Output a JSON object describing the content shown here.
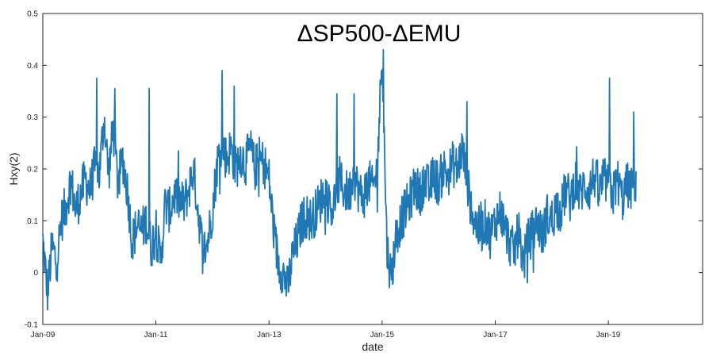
{
  "chart_data": {
    "type": "line",
    "title": "ΔSP500-ΔEMU",
    "xlabel": "date",
    "ylabel": "Hxy(2)",
    "xlim": [
      "2009-01-01",
      "2020-09-01"
    ],
    "ylim": [
      -0.1,
      0.5
    ],
    "grid": false,
    "legend": "none",
    "y_ticks": [
      -0.1,
      0,
      0.1,
      0.2,
      0.3,
      0.4,
      0.5
    ],
    "y_tick_labels": [
      "-0.1",
      "0",
      "0.1",
      "0.2",
      "0.3",
      "0.4",
      "0.5"
    ],
    "x_ticks": [
      "2009-01-01",
      "2011-01-01",
      "2013-01-01",
      "2015-01-01",
      "2017-01-01",
      "2019-01-01"
    ],
    "x_tick_labels": [
      "Jan-09",
      "Jan-11",
      "Jan-13",
      "Jan-15",
      "Jan-17",
      "Jan-19"
    ],
    "line_color": "#1f77b4",
    "series": [
      {
        "values": [
          [
            "2009-01-01",
            0.06
          ],
          [
            "2009-02-01",
            -0.04
          ],
          [
            "2009-03-01",
            0.05
          ],
          [
            "2009-04-01",
            0.02
          ],
          [
            "2009-05-01",
            0.1
          ],
          [
            "2009-06-01",
            0.13
          ],
          [
            "2009-07-01",
            0.18
          ],
          [
            "2009-08-01",
            0.12
          ],
          [
            "2009-09-01",
            0.15
          ],
          [
            "2009-10-01",
            0.18
          ],
          [
            "2009-11-01",
            0.16
          ],
          [
            "2009-12-01",
            0.2
          ],
          [
            "2010-01-01",
            0.19
          ],
          [
            "2010-02-01",
            0.3
          ],
          [
            "2010-03-01",
            0.19
          ],
          [
            "2010-04-01",
            0.28
          ],
          [
            "2010-05-01",
            0.17
          ],
          [
            "2010-06-01",
            0.22
          ],
          [
            "2010-07-01",
            0.16
          ],
          [
            "2010-08-01",
            0.06
          ],
          [
            "2010-09-01",
            0.09
          ],
          [
            "2010-10-01",
            0.08
          ],
          [
            "2010-11-01",
            0.1
          ],
          [
            "2010-12-01",
            0.05
          ],
          [
            "2011-01-01",
            0.08
          ],
          [
            "2011-02-01",
            0.02
          ],
          [
            "2011-03-01",
            0.13
          ],
          [
            "2011-04-01",
            0.12
          ],
          [
            "2011-05-01",
            0.15
          ],
          [
            "2011-06-01",
            0.14
          ],
          [
            "2011-07-01",
            0.13
          ],
          [
            "2011-08-01",
            0.16
          ],
          [
            "2011-09-01",
            0.2
          ],
          [
            "2011-10-01",
            0.12
          ],
          [
            "2011-11-01",
            0.04
          ],
          [
            "2011-12-01",
            0.06
          ],
          [
            "2012-01-01",
            0.12
          ],
          [
            "2012-02-01",
            0.21
          ],
          [
            "2012-03-01",
            0.25
          ],
          [
            "2012-04-01",
            0.22
          ],
          [
            "2012-05-01",
            0.24
          ],
          [
            "2012-06-01",
            0.2
          ],
          [
            "2012-07-01",
            0.23
          ],
          [
            "2012-08-01",
            0.21
          ],
          [
            "2012-09-01",
            0.24
          ],
          [
            "2012-10-01",
            0.2
          ],
          [
            "2012-11-01",
            0.22
          ],
          [
            "2012-12-01",
            0.21
          ],
          [
            "2013-01-01",
            0.18
          ],
          [
            "2013-02-01",
            0.08
          ],
          [
            "2013-03-01",
            0.02
          ],
          [
            "2013-04-01",
            0.0
          ],
          [
            "2013-05-01",
            -0.03
          ],
          [
            "2013-06-01",
            0.03
          ],
          [
            "2013-07-01",
            0.06
          ],
          [
            "2013-08-01",
            0.1
          ],
          [
            "2013-09-01",
            0.11
          ],
          [
            "2013-10-01",
            0.1
          ],
          [
            "2013-11-01",
            0.12
          ],
          [
            "2013-12-01",
            0.14
          ],
          [
            "2014-01-01",
            0.16
          ],
          [
            "2014-02-01",
            0.12
          ],
          [
            "2014-03-01",
            0.14
          ],
          [
            "2014-04-01",
            0.18
          ],
          [
            "2014-05-01",
            0.16
          ],
          [
            "2014-06-01",
            0.15
          ],
          [
            "2014-07-01",
            0.19
          ],
          [
            "2014-08-01",
            0.16
          ],
          [
            "2014-09-01",
            0.14
          ],
          [
            "2014-10-01",
            0.18
          ],
          [
            "2014-11-01",
            0.16
          ],
          [
            "2014-12-01",
            0.2
          ],
          [
            "2015-01-01",
            0.43
          ],
          [
            "2015-02-01",
            0.05
          ],
          [
            "2015-03-01",
            -0.01
          ],
          [
            "2015-04-01",
            0.07
          ],
          [
            "2015-05-01",
            0.1
          ],
          [
            "2015-06-01",
            0.12
          ],
          [
            "2015-07-01",
            0.14
          ],
          [
            "2015-08-01",
            0.17
          ],
          [
            "2015-09-01",
            0.15
          ],
          [
            "2015-10-01",
            0.18
          ],
          [
            "2015-11-01",
            0.16
          ],
          [
            "2015-12-01",
            0.19
          ],
          [
            "2016-01-01",
            0.17
          ],
          [
            "2016-02-01",
            0.2
          ],
          [
            "2016-03-01",
            0.19
          ],
          [
            "2016-04-01",
            0.21
          ],
          [
            "2016-05-01",
            0.2
          ],
          [
            "2016-06-01",
            0.24
          ],
          [
            "2016-07-01",
            0.18
          ],
          [
            "2016-08-01",
            0.12
          ],
          [
            "2016-09-01",
            0.09
          ],
          [
            "2016-10-01",
            0.08
          ],
          [
            "2016-11-01",
            0.1
          ],
          [
            "2016-12-01",
            0.07
          ],
          [
            "2017-01-01",
            0.1
          ],
          [
            "2017-02-01",
            0.12
          ],
          [
            "2017-03-01",
            0.09
          ],
          [
            "2017-04-01",
            0.06
          ],
          [
            "2017-05-01",
            0.04
          ],
          [
            "2017-06-01",
            0.08
          ],
          [
            "2017-07-01",
            0.02
          ],
          [
            "2017-08-01",
            0.06
          ],
          [
            "2017-09-01",
            0.08
          ],
          [
            "2017-10-01",
            0.1
          ],
          [
            "2017-11-01",
            0.07
          ],
          [
            "2017-12-01",
            0.11
          ],
          [
            "2018-01-01",
            0.1
          ],
          [
            "2018-02-01",
            0.13
          ],
          [
            "2018-03-01",
            0.12
          ],
          [
            "2018-04-01",
            0.16
          ],
          [
            "2018-05-01",
            0.14
          ],
          [
            "2018-06-01",
            0.18
          ],
          [
            "2018-07-01",
            0.15
          ],
          [
            "2018-08-01",
            0.17
          ],
          [
            "2018-09-01",
            0.16
          ],
          [
            "2018-10-01",
            0.19
          ],
          [
            "2018-11-01",
            0.15
          ],
          [
            "2018-12-01",
            0.18
          ],
          [
            "2019-01-01",
            0.17
          ],
          [
            "2019-02-01",
            0.15
          ],
          [
            "2019-03-01",
            0.18
          ],
          [
            "2019-04-01",
            0.14
          ],
          [
            "2019-05-01",
            0.17
          ],
          [
            "2019-06-01",
            0.16
          ],
          [
            "2019-07-01",
            0.18
          ]
        ],
        "spikes": [
          [
            "2009-12-15",
            0.375
          ],
          [
            "2010-04-10",
            0.355
          ],
          [
            "2010-11-20",
            0.355
          ],
          [
            "2012-03-05",
            0.39
          ],
          [
            "2012-05-20",
            0.36
          ],
          [
            "2014-03-15",
            0.345
          ],
          [
            "2014-07-05",
            0.345
          ],
          [
            "2015-01-10",
            0.43
          ],
          [
            "2016-07-01",
            0.33
          ],
          [
            "2019-01-10",
            0.375
          ],
          [
            "2019-06-15",
            0.31
          ]
        ]
      }
    ]
  }
}
